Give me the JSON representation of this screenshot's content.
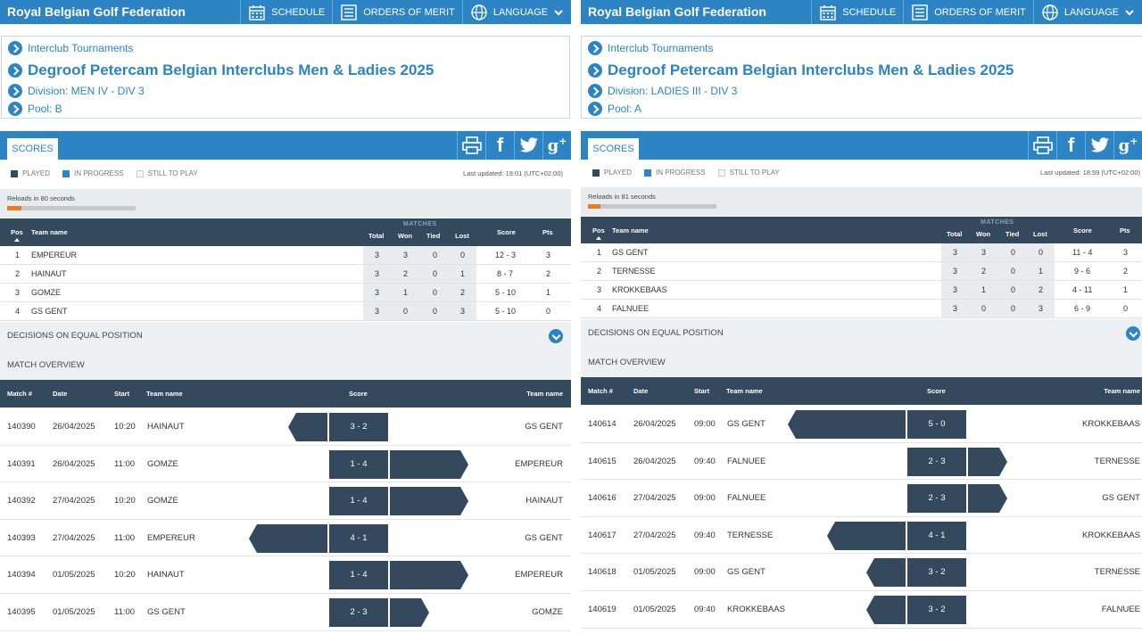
{
  "nav": {
    "federation": "Royal Belgian Golf Federation",
    "schedule": "SCHEDULE",
    "orders": "ORDERS OF MERIT",
    "language": "LANGUAGE"
  },
  "common": {
    "crumb_tournaments": "Interclub Tournaments",
    "tournament_title": "Degroof Petercam Belgian Interclubs Men & Ladies 2025",
    "scores_tab": "SCORES",
    "legend_played": "PLAYED",
    "legend_in_progress": "IN PROGRESS",
    "legend_still": "STILL TO PLAY",
    "col_matches": "MATCHES",
    "col_pos": "Pos",
    "col_team": "Team name",
    "col_total": "Total",
    "col_won": "Won",
    "col_tied": "Tied",
    "col_lost": "Lost",
    "col_score": "Score",
    "col_pts": "Pts",
    "decisions": "DECISIONS ON EQUAL POSITION",
    "match_overview": "MATCH OVERVIEW",
    "mcol_match": "Match #",
    "mcol_date": "Date",
    "mcol_start": "Start",
    "mcol_team": "Team name",
    "mcol_score": "Score",
    "mcol_team2": "Team name"
  },
  "colors": {
    "brand_blue": "#2c84c5",
    "dark_navy": "#34495e",
    "progress_orange": "#e67e22",
    "light_grey": "#e9ecef"
  },
  "left": {
    "division": "Division: MEN IV - DIV 3",
    "pool": "Pool: B",
    "updated": "Last updated: 19:01 (UTC+02:00)",
    "reload": "Reloads in 80 seconds",
    "reload_progress": 0.11,
    "standings": [
      {
        "pos": "1",
        "team": "EMPEREUR",
        "total": "3",
        "won": "3",
        "tied": "0",
        "lost": "0",
        "score": "12 - 3",
        "pts": "3"
      },
      {
        "pos": "2",
        "team": "HAINAUT",
        "total": "3",
        "won": "2",
        "tied": "0",
        "lost": "1",
        "score": "8 - 7",
        "pts": "2"
      },
      {
        "pos": "3",
        "team": "GOMZE",
        "total": "3",
        "won": "1",
        "tied": "0",
        "lost": "2",
        "score": "5 - 10",
        "pts": "1"
      },
      {
        "pos": "4",
        "team": "GS GENT",
        "total": "3",
        "won": "0",
        "tied": "0",
        "lost": "3",
        "score": "5 - 10",
        "pts": "0"
      }
    ],
    "matches": [
      {
        "id": "140390",
        "date": "26/04/2025",
        "start": "10:20",
        "home": "HAINAUT",
        "score": "3 - 2",
        "away": "GS GENT",
        "winner": "home",
        "margin": 1
      },
      {
        "id": "140391",
        "date": "26/04/2025",
        "start": "11:00",
        "home": "GOMZE",
        "score": "1 - 4",
        "away": "EMPEREUR",
        "winner": "away",
        "margin": 3
      },
      {
        "id": "140392",
        "date": "27/04/2025",
        "start": "10:20",
        "home": "GOMZE",
        "score": "1 - 4",
        "away": "HAINAUT",
        "winner": "away",
        "margin": 3
      },
      {
        "id": "140393",
        "date": "27/04/2025",
        "start": "11:00",
        "home": "EMPEREUR",
        "score": "4 - 1",
        "away": "GS GENT",
        "winner": "home",
        "margin": 3
      },
      {
        "id": "140394",
        "date": "01/05/2025",
        "start": "10:20",
        "home": "HAINAUT",
        "score": "1 - 4",
        "away": "EMPEREUR",
        "winner": "away",
        "margin": 3
      },
      {
        "id": "140395",
        "date": "01/05/2025",
        "start": "11:00",
        "home": "GS GENT",
        "score": "2 - 3",
        "away": "GOMZE",
        "winner": "away",
        "margin": 1
      }
    ]
  },
  "right": {
    "division": "Division: LADIES III - DIV 3",
    "pool": "Pool: A",
    "updated": "Last updated: 18:59 (UTC+02:00)",
    "reload": "Reloads in 81 seconds",
    "reload_progress": 0.1,
    "standings": [
      {
        "pos": "1",
        "team": "GS GENT",
        "total": "3",
        "won": "3",
        "tied": "0",
        "lost": "0",
        "score": "11 - 4",
        "pts": "3"
      },
      {
        "pos": "2",
        "team": "TERNESSE",
        "total": "3",
        "won": "2",
        "tied": "0",
        "lost": "1",
        "score": "9 - 6",
        "pts": "2"
      },
      {
        "pos": "3",
        "team": "KROKKEBAAS",
        "total": "3",
        "won": "1",
        "tied": "0",
        "lost": "2",
        "score": "4 - 11",
        "pts": "1"
      },
      {
        "pos": "4",
        "team": "FALNUEE",
        "total": "3",
        "won": "0",
        "tied": "0",
        "lost": "3",
        "score": "6 - 9",
        "pts": "0"
      }
    ],
    "matches": [
      {
        "id": "140614",
        "date": "26/04/2025",
        "start": "09:00",
        "home": "GS GENT",
        "score": "5 - 0",
        "away": "KROKKEBAAS",
        "winner": "home",
        "margin": 5
      },
      {
        "id": "140615",
        "date": "26/04/2025",
        "start": "09:40",
        "home": "FALNUEE",
        "score": "2 - 3",
        "away": "TERNESSE",
        "winner": "away",
        "margin": 1
      },
      {
        "id": "140616",
        "date": "27/04/2025",
        "start": "09:00",
        "home": "FALNUEE",
        "score": "2 - 3",
        "away": "GS GENT",
        "winner": "away",
        "margin": 1
      },
      {
        "id": "140617",
        "date": "27/04/2025",
        "start": "09:40",
        "home": "TERNESSE",
        "score": "4 - 1",
        "away": "KROKKEBAAS",
        "winner": "home",
        "margin": 3
      },
      {
        "id": "140618",
        "date": "01/05/2025",
        "start": "09:00",
        "home": "GS GENT",
        "score": "3 - 2",
        "away": "TERNESSE",
        "winner": "home",
        "margin": 1
      },
      {
        "id": "140619",
        "date": "01/05/2025",
        "start": "09:40",
        "home": "KROKKEBAAS",
        "score": "3 - 2",
        "away": "FALNUEE",
        "winner": "home",
        "margin": 1
      }
    ]
  }
}
